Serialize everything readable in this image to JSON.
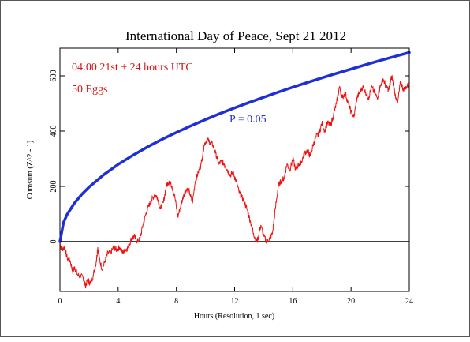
{
  "chart_data": {
    "type": "line",
    "title": "International Day of Peace, Sept 21 2012",
    "xlabel": "Hours (Resolution, 1 sec)",
    "ylabel": "Cumsum (Z^2 - 1)",
    "xlim": [
      0,
      24
    ],
    "ylim": [
      -180,
      700
    ],
    "x_ticks": [
      0,
      4,
      8,
      12,
      16,
      20,
      24
    ],
    "y_ticks": [
      0,
      200,
      400,
      600
    ],
    "grid": false,
    "annotations": {
      "time_window": "04:00 21st + 24 hours UTC",
      "eggs": "50 Eggs",
      "probability": "P = 0.05"
    },
    "colors": {
      "data": "#ee1111",
      "envelope": "#1f2fd6",
      "baseline": "#000000",
      "annotation_red": "#dd1111",
      "annotation_blue": "#1f2fd6"
    },
    "series": [
      {
        "role": "cumulative deviation",
        "x": [
          0,
          0.1,
          0.3,
          0.5,
          0.7,
          0.9,
          1.0,
          1.2,
          1.4,
          1.6,
          1.75,
          1.9,
          2.1,
          2.3,
          2.5,
          2.6,
          2.7,
          2.9,
          3.1,
          3.3,
          3.5,
          3.7,
          3.9,
          4.1,
          4.3,
          4.5,
          4.7,
          4.9,
          5.1,
          5.3,
          5.5,
          5.7,
          5.9,
          6.1,
          6.3,
          6.5,
          6.7,
          6.9,
          7.1,
          7.3,
          7.5,
          7.7,
          7.9,
          8.1,
          8.3,
          8.5,
          8.7,
          8.9,
          9.1,
          9.3,
          9.5,
          9.7,
          9.9,
          10.1,
          10.3,
          10.5,
          10.7,
          10.9,
          11.1,
          11.3,
          11.5,
          11.7,
          11.9,
          12.1,
          12.3,
          12.5,
          12.7,
          12.9,
          13.1,
          13.3,
          13.5,
          13.6,
          13.8,
          14.0,
          14.2,
          14.4,
          14.6,
          14.8,
          15.0,
          15.2,
          15.4,
          15.6,
          15.8,
          16.0,
          16.2,
          16.4,
          16.6,
          16.8,
          17.0,
          17.2,
          17.4,
          17.6,
          17.8,
          18.0,
          18.2,
          18.4,
          18.6,
          18.8,
          19.0,
          19.2,
          19.4,
          19.6,
          19.8,
          20.0,
          20.2,
          20.4,
          20.6,
          20.8,
          21.0,
          21.2,
          21.4,
          21.6,
          21.8,
          22.0,
          22.2,
          22.4,
          22.6,
          22.8,
          23.0,
          23.2,
          23.4,
          23.6,
          23.8,
          24.0
        ],
        "y": [
          0,
          -30,
          -20,
          -60,
          -70,
          -110,
          -90,
          -120,
          -125,
          -130,
          -160,
          -140,
          -150,
          -120,
          -70,
          -20,
          -60,
          -100,
          -70,
          -40,
          -40,
          -20,
          -30,
          -20,
          -40,
          -30,
          -20,
          10,
          20,
          0,
          10,
          60,
          100,
          130,
          150,
          170,
          160,
          120,
          140,
          200,
          220,
          200,
          160,
          90,
          130,
          170,
          190,
          180,
          140,
          220,
          250,
          280,
          350,
          370,
          360,
          350,
          320,
          280,
          290,
          280,
          260,
          240,
          250,
          220,
          180,
          160,
          140,
          110,
          70,
          30,
          0,
          10,
          60,
          20,
          0,
          10,
          30,
          120,
          200,
          220,
          230,
          280,
          260,
          300,
          260,
          280,
          290,
          320,
          330,
          310,
          350,
          380,
          390,
          430,
          400,
          430,
          420,
          460,
          500,
          560,
          520,
          540,
          500,
          470,
          450,
          520,
          540,
          560,
          540,
          520,
          560,
          540,
          520,
          560,
          590,
          560,
          550,
          600,
          540,
          500,
          580,
          550,
          560,
          570
        ]
      },
      {
        "role": "probability envelope",
        "name": "P = 0.05",
        "x": [
          0,
          0.25,
          0.5,
          1,
          1.5,
          2,
          3,
          4,
          5,
          6,
          7,
          8,
          9,
          10,
          11,
          12,
          13,
          14,
          15,
          16,
          17,
          18,
          19,
          20,
          21,
          22,
          23,
          24
        ],
        "y": [
          0,
          69.8,
          98.8,
          139.7,
          171.1,
          197.5,
          242.0,
          279.4,
          312.4,
          342.2,
          369.6,
          395.2,
          419.1,
          441.8,
          463.4,
          484.0,
          503.7,
          522.7,
          541.1,
          558.8,
          576.0,
          592.7,
          608.9,
          624.7,
          640.2,
          655.3,
          670.1,
          684.4
        ]
      },
      {
        "role": "zero baseline",
        "x": [
          0,
          24
        ],
        "y": [
          0,
          0
        ]
      }
    ]
  }
}
